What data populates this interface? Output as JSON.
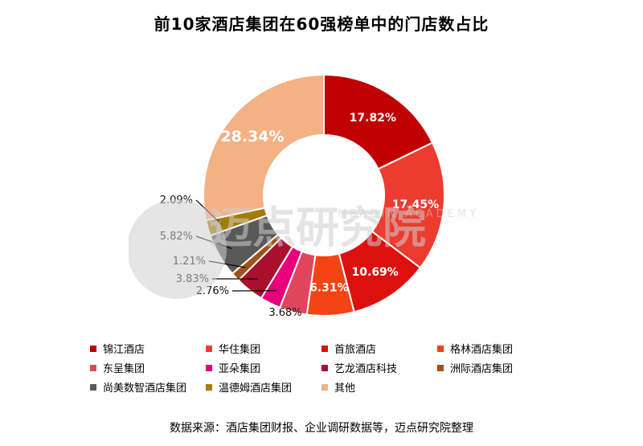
{
  "chart_data": {
    "type": "pie",
    "title": "前10家酒店集团在60强榜单中的门店数占比",
    "categories": [
      "锦江酒店",
      "华住集团",
      "首旅酒店",
      "格林酒店集团",
      "东呈集团",
      "亚朵集团",
      "艺龙酒店科技",
      "洲际酒店集团",
      "尚美数智酒店集团",
      "温德姆酒店集团",
      "其他"
    ],
    "values": [
      17.82,
      17.45,
      10.69,
      6.31,
      3.68,
      2.76,
      3.83,
      1.21,
      5.82,
      2.09,
      28.34
    ],
    "labels": [
      "17.82%",
      "17.45%",
      "10.69%",
      "6.31%",
      "3.68%",
      "2.76%",
      "3.83%",
      "1.21%",
      "5.82%",
      "2.09%",
      "28.34%"
    ],
    "colors": [
      "#C00000",
      "#EE3B2F",
      "#DD1010",
      "#F44314",
      "#E0455E",
      "#E6007A",
      "#A8102E",
      "#A0521A",
      "#595959",
      "#A37C00",
      "#F4B183"
    ],
    "donut": true,
    "legend_position": "bottom"
  },
  "watermark": {
    "text": "迈点研究院",
    "subtext": "MEADIN ACADEMY"
  },
  "source": "数据来源：酒店集团财报、企业调研数据等，迈点研究院整理"
}
